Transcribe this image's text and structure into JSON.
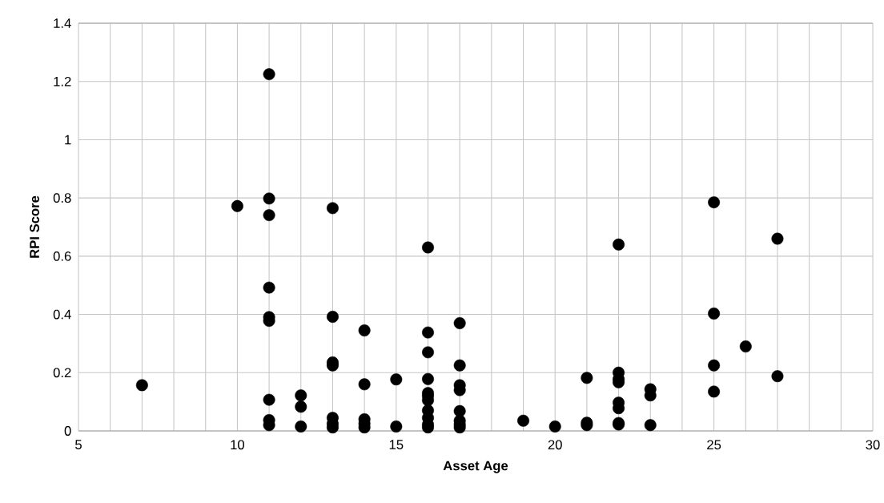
{
  "chart_data": {
    "type": "scatter",
    "xlabel": "Asset Age",
    "ylabel": "RPI Score",
    "x": [
      7,
      10,
      11,
      11,
      11,
      11,
      11,
      11,
      11,
      11,
      11,
      12,
      12,
      12,
      13,
      13,
      13,
      13,
      13,
      13,
      13,
      14,
      14,
      14,
      14,
      14,
      15,
      15,
      16,
      16,
      16,
      16,
      16,
      16,
      16,
      16,
      16,
      16,
      16,
      17,
      17,
      17,
      17,
      17,
      17,
      17,
      17,
      19,
      20,
      21,
      21,
      21,
      22,
      22,
      22,
      22,
      22,
      22,
      22,
      22,
      23,
      23,
      23,
      25,
      25,
      25,
      25,
      26,
      27,
      27
    ],
    "values": [
      0.157,
      0.772,
      1.225,
      0.798,
      0.741,
      0.492,
      0.391,
      0.378,
      0.107,
      0.037,
      0.02,
      0.122,
      0.083,
      0.015,
      0.765,
      0.392,
      0.235,
      0.225,
      0.045,
      0.025,
      0.012,
      0.345,
      0.16,
      0.04,
      0.025,
      0.012,
      0.177,
      0.015,
      0.63,
      0.338,
      0.27,
      0.178,
      0.13,
      0.12,
      0.105,
      0.07,
      0.045,
      0.022,
      0.012,
      0.37,
      0.225,
      0.157,
      0.14,
      0.068,
      0.035,
      0.022,
      0.012,
      0.035,
      0.015,
      0.182,
      0.028,
      0.02,
      0.64,
      0.2,
      0.178,
      0.167,
      0.097,
      0.078,
      0.027,
      0.022,
      0.143,
      0.122,
      0.02,
      0.785,
      0.403,
      0.225,
      0.135,
      0.29,
      0.66,
      0.188
    ],
    "color": "#000000",
    "marker": "circle",
    "grid": true,
    "xlim": [
      5,
      30
    ],
    "xticks": [
      5,
      {
        "value": 6,
        "label": null
      },
      {
        "value": 7,
        "label": null
      },
      {
        "value": 8,
        "label": null
      },
      {
        "value": 9,
        "label": null
      },
      10,
      {
        "value": 11,
        "label": null
      },
      {
        "value": 12,
        "label": null
      },
      {
        "value": 13,
        "label": null
      },
      {
        "value": 14,
        "label": null
      },
      15,
      {
        "value": 16,
        "label": null
      },
      {
        "value": 17,
        "label": null
      },
      {
        "value": 18,
        "label": null
      },
      {
        "value": 19,
        "label": null
      },
      20,
      {
        "value": 21,
        "label": null
      },
      {
        "value": 22,
        "label": null
      },
      {
        "value": 23,
        "label": null
      },
      {
        "value": 24,
        "label": null
      },
      25,
      {
        "value": 26,
        "label": null
      },
      {
        "value": 27,
        "label": null
      },
      {
        "value": 28,
        "label": null
      },
      {
        "value": 29,
        "label": null
      },
      30
    ],
    "ylim": [
      0,
      1.4
    ],
    "yticks": [
      0,
      0.2,
      0.4,
      0.6,
      0.8,
      1,
      1.2,
      1.4
    ]
  }
}
